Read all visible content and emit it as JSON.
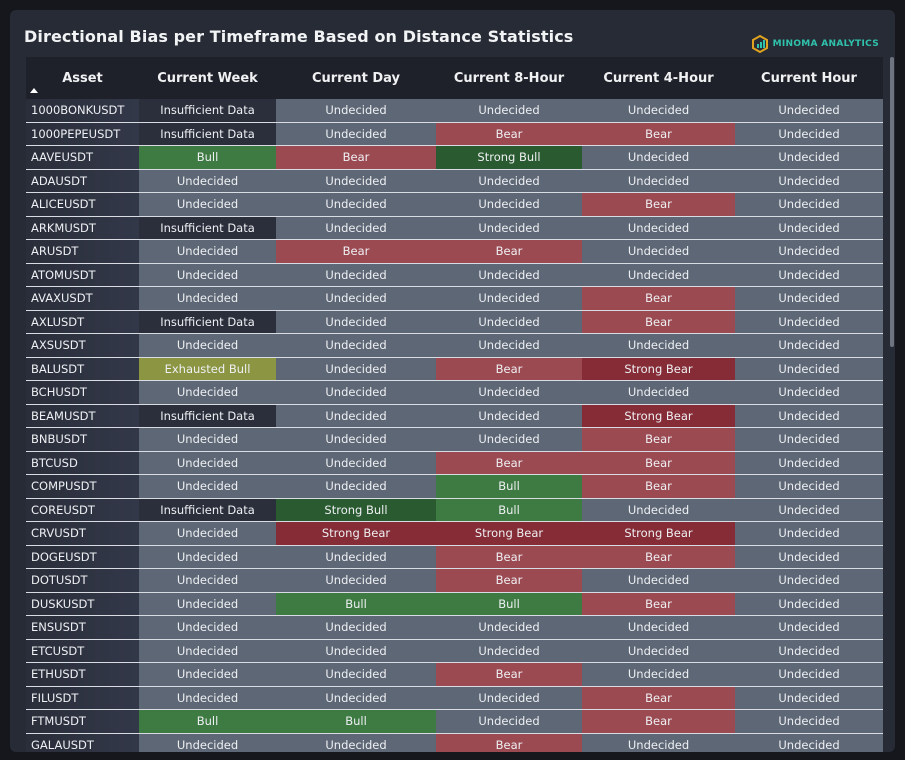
{
  "title": "Directional Bias per Timeframe Based on Distance Statistics",
  "brand": {
    "name": "MINOMA ANALYTICS",
    "icon": "hexagon-chart-logo-icon",
    "color": "#2fc2ad"
  },
  "columns": [
    "Asset",
    "Current Week",
    "Current Day",
    "Current 8-Hour",
    "Current 4-Hour",
    "Current Hour"
  ],
  "sort": {
    "column": "Asset",
    "direction": "ascending",
    "icon": "sort-ascending-icon"
  },
  "colors": {
    "Undecided": "#5e6775",
    "Insufficient Data": "#2a2f3b",
    "Bull": "#3e7b43",
    "Strong Bull": "#2a5a30",
    "Bear": "#9c4a52",
    "Strong Bear": "#862c36",
    "Exhausted Bull": "#8b9542"
  },
  "rows": [
    [
      "1000BONKUSDT",
      "Insufficient Data",
      "Undecided",
      "Undecided",
      "Undecided",
      "Undecided"
    ],
    [
      "1000PEPEUSDT",
      "Insufficient Data",
      "Undecided",
      "Bear",
      "Bear",
      "Undecided"
    ],
    [
      "AAVEUSDT",
      "Bull",
      "Bear",
      "Strong Bull",
      "Undecided",
      "Undecided"
    ],
    [
      "ADAUSDT",
      "Undecided",
      "Undecided",
      "Undecided",
      "Undecided",
      "Undecided"
    ],
    [
      "ALICEUSDT",
      "Undecided",
      "Undecided",
      "Undecided",
      "Bear",
      "Undecided"
    ],
    [
      "ARKMUSDT",
      "Insufficient Data",
      "Undecided",
      "Undecided",
      "Undecided",
      "Undecided"
    ],
    [
      "ARUSDT",
      "Undecided",
      "Bear",
      "Bear",
      "Undecided",
      "Undecided"
    ],
    [
      "ATOMUSDT",
      "Undecided",
      "Undecided",
      "Undecided",
      "Undecided",
      "Undecided"
    ],
    [
      "AVAXUSDT",
      "Undecided",
      "Undecided",
      "Undecided",
      "Bear",
      "Undecided"
    ],
    [
      "AXLUSDT",
      "Insufficient Data",
      "Undecided",
      "Undecided",
      "Bear",
      "Undecided"
    ],
    [
      "AXSUSDT",
      "Undecided",
      "Undecided",
      "Undecided",
      "Undecided",
      "Undecided"
    ],
    [
      "BALUSDT",
      "Exhausted Bull",
      "Undecided",
      "Bear",
      "Strong Bear",
      "Undecided"
    ],
    [
      "BCHUSDT",
      "Undecided",
      "Undecided",
      "Undecided",
      "Undecided",
      "Undecided"
    ],
    [
      "BEAMUSDT",
      "Insufficient Data",
      "Undecided",
      "Undecided",
      "Strong Bear",
      "Undecided"
    ],
    [
      "BNBUSDT",
      "Undecided",
      "Undecided",
      "Undecided",
      "Bear",
      "Undecided"
    ],
    [
      "BTCUSD",
      "Undecided",
      "Undecided",
      "Bear",
      "Bear",
      "Undecided"
    ],
    [
      "COMPUSDT",
      "Undecided",
      "Undecided",
      "Bull",
      "Bear",
      "Undecided"
    ],
    [
      "COREUSDT",
      "Insufficient Data",
      "Strong Bull",
      "Bull",
      "Undecided",
      "Undecided"
    ],
    [
      "CRVUSDT",
      "Undecided",
      "Strong Bear",
      "Strong Bear",
      "Strong Bear",
      "Undecided"
    ],
    [
      "DOGEUSDT",
      "Undecided",
      "Undecided",
      "Bear",
      "Bear",
      "Undecided"
    ],
    [
      "DOTUSDT",
      "Undecided",
      "Undecided",
      "Bear",
      "Undecided",
      "Undecided"
    ],
    [
      "DUSKUSDT",
      "Undecided",
      "Bull",
      "Bull",
      "Bear",
      "Undecided"
    ],
    [
      "ENSUSDT",
      "Undecided",
      "Undecided",
      "Undecided",
      "Undecided",
      "Undecided"
    ],
    [
      "ETCUSDT",
      "Undecided",
      "Undecided",
      "Undecided",
      "Undecided",
      "Undecided"
    ],
    [
      "ETHUSDT",
      "Undecided",
      "Undecided",
      "Bear",
      "Undecided",
      "Undecided"
    ],
    [
      "FILUSDT",
      "Undecided",
      "Undecided",
      "Undecided",
      "Bear",
      "Undecided"
    ],
    [
      "FTMUSDT",
      "Bull",
      "Bull",
      "Undecided",
      "Bear",
      "Undecided"
    ],
    [
      "GALAUSDT",
      "Undecided",
      "Undecided",
      "Bear",
      "Undecided",
      "Undecided"
    ]
  ]
}
